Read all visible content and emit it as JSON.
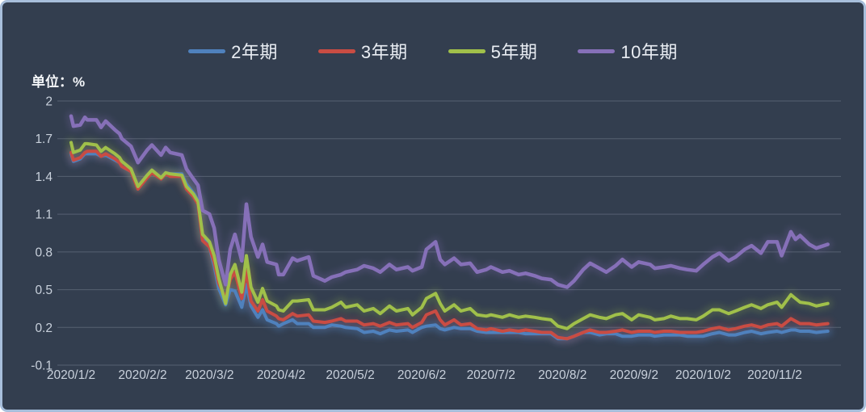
{
  "frame": {
    "background": "#333e4f",
    "border_color": "#a7bedb"
  },
  "unit_label": "单位：%",
  "legend": [
    {
      "label": "2年期",
      "color": "#4f81bd"
    },
    {
      "label": "3年期",
      "color": "#c94c43"
    },
    {
      "label": "5年期",
      "color": "#a0c04a"
    },
    {
      "label": "10年期",
      "color": "#8670b8"
    }
  ],
  "chart_data": {
    "type": "line",
    "title": "",
    "ylabel": "单位：%",
    "ylim": [
      -0.1,
      2
    ],
    "yticks": [
      "2",
      "1.7",
      "1.4",
      "1.1",
      "0.8",
      "0.5",
      "0.2",
      "-0.1"
    ],
    "xticks": [
      "2020/1/2",
      "2020/2/2",
      "2020/3/2",
      "2020/4/2",
      "2020/5/2",
      "2020/6/2",
      "2020/7/2",
      "2020/8/2",
      "2020/9/2",
      "2020/10/2",
      "2020/11/2"
    ],
    "grid": "horizontal",
    "legend_position": "top-center",
    "grid_color": "#566070",
    "x_dates": [
      "2020/1/2",
      "2020/1/3",
      "2020/1/6",
      "2020/1/8",
      "2020/1/9",
      "2020/1/13",
      "2020/1/15",
      "2020/1/17",
      "2020/1/21",
      "2020/1/23",
      "2020/1/24",
      "2020/1/28",
      "2020/1/31",
      "2020/2/4",
      "2020/2/6",
      "2020/2/10",
      "2020/2/12",
      "2020/2/14",
      "2020/2/19",
      "2020/2/21",
      "2020/2/24",
      "2020/2/26",
      "2020/2/28",
      "2020/3/2",
      "2020/3/4",
      "2020/3/6",
      "2020/3/9",
      "2020/3/11",
      "2020/3/13",
      "2020/3/16",
      "2020/3/18",
      "2020/3/20",
      "2020/3/23",
      "2020/3/25",
      "2020/3/27",
      "2020/3/31",
      "2020/4/1",
      "2020/4/3",
      "2020/4/7",
      "2020/4/9",
      "2020/4/14",
      "2020/4/16",
      "2020/4/21",
      "2020/4/24",
      "2020/4/28",
      "2020/4/30",
      "2020/5/5",
      "2020/5/8",
      "2020/5/12",
      "2020/5/15",
      "2020/5/19",
      "2020/5/22",
      "2020/5/27",
      "2020/5/29",
      "2020/6/2",
      "2020/6/4",
      "2020/6/8",
      "2020/6/10",
      "2020/6/12",
      "2020/6/16",
      "2020/6/19",
      "2020/6/23",
      "2020/6/26",
      "2020/6/30",
      "2020/7/2",
      "2020/7/7",
      "2020/7/10",
      "2020/7/14",
      "2020/7/17",
      "2020/7/21",
      "2020/7/24",
      "2020/7/28",
      "2020/7/31",
      "2020/8/4",
      "2020/8/7",
      "2020/8/11",
      "2020/8/14",
      "2020/8/18",
      "2020/8/21",
      "2020/8/25",
      "2020/8/28",
      "2020/9/1",
      "2020/9/4",
      "2020/9/9",
      "2020/9/11",
      "2020/9/15",
      "2020/9/18",
      "2020/9/22",
      "2020/9/25",
      "2020/9/29",
      "2020/10/2",
      "2020/10/6",
      "2020/10/9",
      "2020/10/13",
      "2020/10/16",
      "2020/10/20",
      "2020/10/23",
      "2020/10/27",
      "2020/10/30",
      "2020/11/3",
      "2020/11/5",
      "2020/11/9",
      "2020/11/11",
      "2020/11/13",
      "2020/11/17",
      "2020/11/20",
      "2020/11/25"
    ],
    "series": [
      {
        "name": "2年期",
        "color": "#4f81bd",
        "glow_opacity": 0.38,
        "values": [
          1.58,
          1.52,
          1.54,
          1.58,
          1.58,
          1.58,
          1.56,
          1.57,
          1.53,
          1.51,
          1.48,
          1.44,
          1.32,
          1.41,
          1.44,
          1.39,
          1.43,
          1.42,
          1.42,
          1.34,
          1.27,
          1.21,
          0.91,
          0.84,
          0.69,
          0.51,
          0.38,
          0.5,
          0.49,
          0.36,
          0.54,
          0.37,
          0.28,
          0.34,
          0.26,
          0.23,
          0.21,
          0.23,
          0.26,
          0.23,
          0.23,
          0.2,
          0.2,
          0.22,
          0.21,
          0.2,
          0.19,
          0.16,
          0.17,
          0.15,
          0.18,
          0.17,
          0.18,
          0.16,
          0.2,
          0.21,
          0.22,
          0.19,
          0.18,
          0.2,
          0.19,
          0.19,
          0.17,
          0.16,
          0.16,
          0.16,
          0.16,
          0.16,
          0.15,
          0.15,
          0.15,
          0.15,
          0.11,
          0.11,
          0.13,
          0.16,
          0.16,
          0.14,
          0.15,
          0.15,
          0.13,
          0.13,
          0.14,
          0.14,
          0.13,
          0.14,
          0.14,
          0.14,
          0.13,
          0.13,
          0.13,
          0.15,
          0.16,
          0.14,
          0.14,
          0.16,
          0.17,
          0.15,
          0.16,
          0.17,
          0.16,
          0.18,
          0.18,
          0.17,
          0.17,
          0.16,
          0.17
        ]
      },
      {
        "name": "3年期",
        "color": "#c94c43",
        "glow_opacity": 0.2,
        "values": [
          1.59,
          1.53,
          1.55,
          1.59,
          1.6,
          1.6,
          1.56,
          1.58,
          1.54,
          1.51,
          1.48,
          1.44,
          1.3,
          1.39,
          1.43,
          1.38,
          1.42,
          1.4,
          1.4,
          1.3,
          1.24,
          1.18,
          0.89,
          0.84,
          0.72,
          0.55,
          0.43,
          0.58,
          0.64,
          0.43,
          0.65,
          0.41,
          0.33,
          0.42,
          0.33,
          0.29,
          0.27,
          0.26,
          0.31,
          0.29,
          0.3,
          0.25,
          0.24,
          0.25,
          0.27,
          0.25,
          0.25,
          0.22,
          0.23,
          0.21,
          0.24,
          0.22,
          0.23,
          0.2,
          0.24,
          0.3,
          0.33,
          0.26,
          0.22,
          0.26,
          0.22,
          0.23,
          0.19,
          0.18,
          0.19,
          0.17,
          0.18,
          0.17,
          0.18,
          0.17,
          0.16,
          0.16,
          0.12,
          0.11,
          0.13,
          0.16,
          0.18,
          0.16,
          0.16,
          0.17,
          0.18,
          0.16,
          0.17,
          0.17,
          0.16,
          0.17,
          0.17,
          0.16,
          0.16,
          0.16,
          0.17,
          0.19,
          0.2,
          0.18,
          0.19,
          0.21,
          0.22,
          0.2,
          0.22,
          0.23,
          0.21,
          0.27,
          0.25,
          0.23,
          0.23,
          0.22,
          0.23
        ]
      },
      {
        "name": "5年期",
        "color": "#a0c04a",
        "glow_opacity": 0.2,
        "values": [
          1.67,
          1.59,
          1.61,
          1.66,
          1.66,
          1.65,
          1.6,
          1.63,
          1.58,
          1.55,
          1.52,
          1.46,
          1.32,
          1.41,
          1.45,
          1.39,
          1.43,
          1.42,
          1.41,
          1.32,
          1.26,
          1.2,
          0.94,
          0.88,
          0.77,
          0.59,
          0.39,
          0.62,
          0.7,
          0.48,
          0.77,
          0.52,
          0.4,
          0.51,
          0.41,
          0.37,
          0.34,
          0.33,
          0.41,
          0.41,
          0.42,
          0.34,
          0.34,
          0.36,
          0.4,
          0.36,
          0.38,
          0.33,
          0.35,
          0.31,
          0.37,
          0.33,
          0.35,
          0.3,
          0.36,
          0.43,
          0.47,
          0.39,
          0.33,
          0.38,
          0.33,
          0.35,
          0.3,
          0.29,
          0.3,
          0.28,
          0.3,
          0.28,
          0.29,
          0.28,
          0.27,
          0.26,
          0.21,
          0.19,
          0.23,
          0.27,
          0.3,
          0.28,
          0.27,
          0.3,
          0.31,
          0.26,
          0.3,
          0.28,
          0.26,
          0.27,
          0.29,
          0.27,
          0.27,
          0.26,
          0.29,
          0.34,
          0.34,
          0.31,
          0.33,
          0.36,
          0.38,
          0.35,
          0.38,
          0.4,
          0.36,
          0.46,
          0.43,
          0.4,
          0.39,
          0.37,
          0.39
        ]
      },
      {
        "name": "10年期",
        "color": "#8670b8",
        "glow_opacity": 0.22,
        "values": [
          1.88,
          1.8,
          1.81,
          1.87,
          1.85,
          1.85,
          1.79,
          1.84,
          1.77,
          1.74,
          1.7,
          1.64,
          1.51,
          1.61,
          1.65,
          1.57,
          1.63,
          1.59,
          1.57,
          1.46,
          1.38,
          1.33,
          1.13,
          1.1,
          0.99,
          0.74,
          0.54,
          0.82,
          0.94,
          0.73,
          1.18,
          0.92,
          0.76,
          0.86,
          0.72,
          0.7,
          0.62,
          0.62,
          0.75,
          0.73,
          0.76,
          0.61,
          0.57,
          0.6,
          0.62,
          0.64,
          0.66,
          0.69,
          0.67,
          0.64,
          0.7,
          0.66,
          0.68,
          0.65,
          0.68,
          0.82,
          0.88,
          0.74,
          0.7,
          0.75,
          0.7,
          0.71,
          0.64,
          0.66,
          0.68,
          0.64,
          0.65,
          0.62,
          0.63,
          0.61,
          0.59,
          0.58,
          0.54,
          0.52,
          0.57,
          0.66,
          0.71,
          0.67,
          0.64,
          0.69,
          0.74,
          0.68,
          0.72,
          0.7,
          0.67,
          0.68,
          0.69,
          0.67,
          0.66,
          0.65,
          0.7,
          0.76,
          0.79,
          0.73,
          0.76,
          0.82,
          0.85,
          0.79,
          0.88,
          0.88,
          0.77,
          0.96,
          0.9,
          0.93,
          0.86,
          0.83,
          0.86
        ]
      }
    ]
  }
}
